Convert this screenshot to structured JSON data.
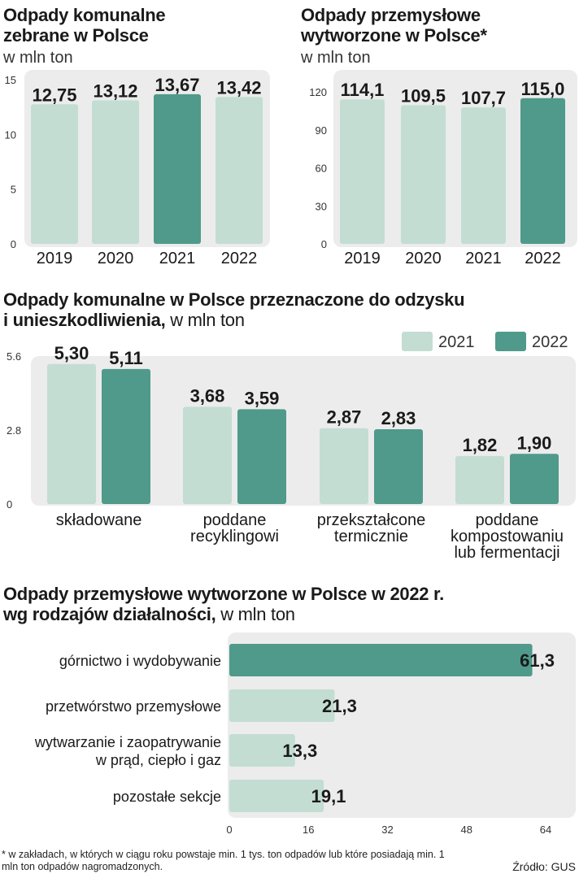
{
  "chart_data": [
    {
      "id": "municipal",
      "type": "bar",
      "title": "Odpady komunalne zebrane w Polsce",
      "unit": "w mln ton",
      "categories": [
        "2019",
        "2020",
        "2021",
        "2022"
      ],
      "values": [
        12.75,
        13.12,
        13.67,
        13.42
      ],
      "labels": [
        "12,75",
        "13,12",
        "13,67",
        "13,42"
      ],
      "highlight": [
        false,
        false,
        true,
        false
      ],
      "yticks": [
        0,
        5,
        10,
        15
      ],
      "ylim": [
        0,
        15
      ]
    },
    {
      "id": "industrial",
      "type": "bar",
      "title": "Odpady przemysłowe wytworzone w Polsce*",
      "unit": "w mln ton",
      "categories": [
        "2019",
        "2020",
        "2021",
        "2022"
      ],
      "values": [
        114.1,
        109.5,
        107.7,
        115.0
      ],
      "labels": [
        "114,1",
        "109,5",
        "107,7",
        "115,0"
      ],
      "highlight": [
        false,
        false,
        false,
        true
      ],
      "yticks": [
        0,
        30,
        60,
        90,
        120
      ],
      "ylim": [
        0,
        120
      ]
    },
    {
      "id": "recovery",
      "type": "bar",
      "title": "Odpady komunalne w Polsce przeznaczone do odzysku i unieszkodliwienia,",
      "unit": "w mln ton",
      "legend": [
        "2021",
        "2022"
      ],
      "categories": [
        [
          "składowane"
        ],
        [
          "poddane",
          "recyklingowi"
        ],
        [
          "przekształcone",
          "termicznie"
        ],
        [
          "poddane",
          "kompostowaniu",
          "lub fermentacji"
        ]
      ],
      "series": [
        {
          "name": "2021",
          "values": [
            5.3,
            3.68,
            2.87,
            1.82
          ],
          "labels": [
            "5,30",
            "3,68",
            "2,87",
            "1,82"
          ]
        },
        {
          "name": "2022",
          "values": [
            5.11,
            3.59,
            2.83,
            1.9
          ],
          "labels": [
            "5,11",
            "3,59",
            "2,83",
            "1,90"
          ]
        }
      ],
      "yticks": [
        0,
        2.8,
        5.6
      ],
      "ytick_labels": [
        "0",
        "2.8",
        "5.6"
      ],
      "ylim": [
        0,
        5.6
      ]
    },
    {
      "id": "sectors",
      "type": "bar",
      "orientation": "horizontal",
      "title": "Odpady przemysłowe wytworzone w Polsce w 2022 r. wg rodzajów działalności,",
      "unit": "w mln ton",
      "categories": [
        [
          "górnictwo i wydobywanie"
        ],
        [
          "przetwórstwo przemysłowe"
        ],
        [
          "wytwarzanie i zaopatrywanie",
          "w prąd, ciepło i gaz"
        ],
        [
          "pozostałe sekcje"
        ]
      ],
      "values": [
        61.3,
        21.3,
        13.3,
        19.1
      ],
      "labels": [
        "61,3",
        "21,3",
        "13,3",
        "19,1"
      ],
      "highlight": [
        true,
        false,
        false,
        false
      ],
      "xticks": [
        0,
        16,
        32,
        48,
        64
      ],
      "xlim": [
        0,
        64
      ]
    }
  ],
  "titles": {
    "municipal_l1": "Odpady komunalne",
    "municipal_l2": "zebrane w Polsce",
    "municipal_unit": "w mln ton",
    "industrial_l1": "Odpady przemysłowe",
    "industrial_l2": "wytworzone w Polsce*",
    "industrial_unit": "w mln ton",
    "recovery_l1": "Odpady komunalne w Polsce przeznaczone do odzysku",
    "recovery_l2": "i unieszkodliwienia,",
    "recovery_unit": " w mln ton",
    "sectors_l1": "Odpady przemysłowe wytworzone w Polsce w 2022 r.",
    "sectors_l2": "wg rodzajów działalności,",
    "sectors_unit": " w mln ton"
  },
  "footnote": "* w zakładach, w których w ciągu roku powstaje min. 1 tys. ton odpadów lub które posiadają min. 1 mln ton odpadów nagromadzonych.",
  "source": "Źródło: GUS",
  "colors": {
    "light": "#c3ddd3",
    "dark": "#4f9a8b",
    "panel": "#ececec",
    "text": "#1a1a1a"
  }
}
